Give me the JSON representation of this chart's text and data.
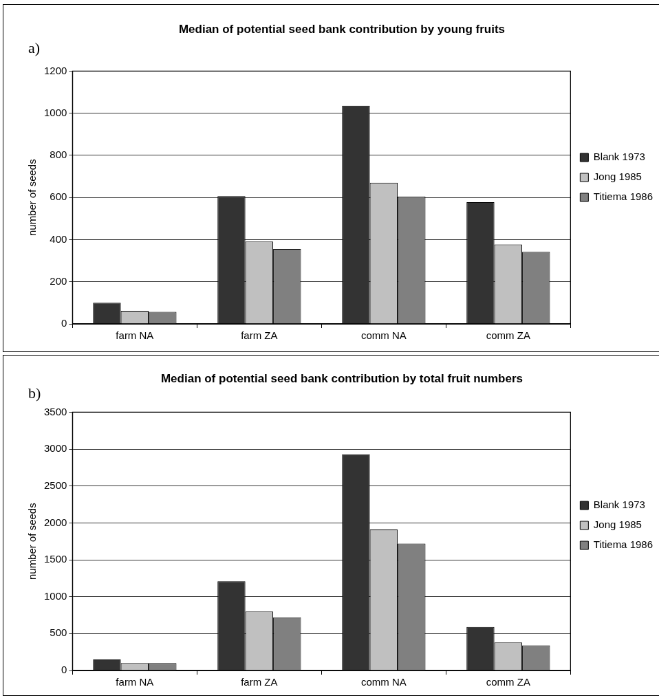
{
  "chart_data": [
    {
      "type": "bar",
      "title": "Median of potential seed bank contribution by young fruits",
      "ylabel": "number of seeds",
      "annotations": [
        "a)"
      ],
      "categories": [
        "farm NA",
        "farm ZA",
        "comm NA",
        "comm ZA"
      ],
      "series": [
        {
          "name": "Blank 1973",
          "color": "#333333",
          "values": [
            100,
            606,
            1036,
            578
          ]
        },
        {
          "name": "Jong 1985",
          "color": "#c0c0c0",
          "values": [
            62,
            391,
            670,
            377
          ]
        },
        {
          "name": "Titiema 1986",
          "color": "#808080",
          "values": [
            57,
            356,
            605,
            342
          ]
        }
      ],
      "ylim": [
        0,
        1200
      ],
      "yticks": [
        0,
        200,
        400,
        600,
        800,
        1000,
        1200
      ],
      "grid": "y",
      "legend": "right"
    },
    {
      "type": "bar",
      "title": "Median of potential seed bank contribution by total fruit numbers",
      "ylabel": "number of seeds",
      "annotations": [
        "b)"
      ],
      "categories": [
        "farm NA",
        "farm ZA",
        "comm NA",
        "comm ZA"
      ],
      "series": [
        {
          "name": "Blank 1973",
          "color": "#333333",
          "values": [
            150,
            1210,
            2930,
            590
          ]
        },
        {
          "name": "Jong 1985",
          "color": "#c0c0c0",
          "values": [
            100,
            800,
            1910,
            380
          ]
        },
        {
          "name": "Titiema 1986",
          "color": "#808080",
          "values": [
            100,
            720,
            1720,
            340
          ]
        }
      ],
      "ylim": [
        0,
        3500
      ],
      "yticks": [
        0,
        500,
        1000,
        1500,
        2000,
        2500,
        3000,
        3500
      ],
      "grid": "y",
      "legend": "right"
    }
  ]
}
